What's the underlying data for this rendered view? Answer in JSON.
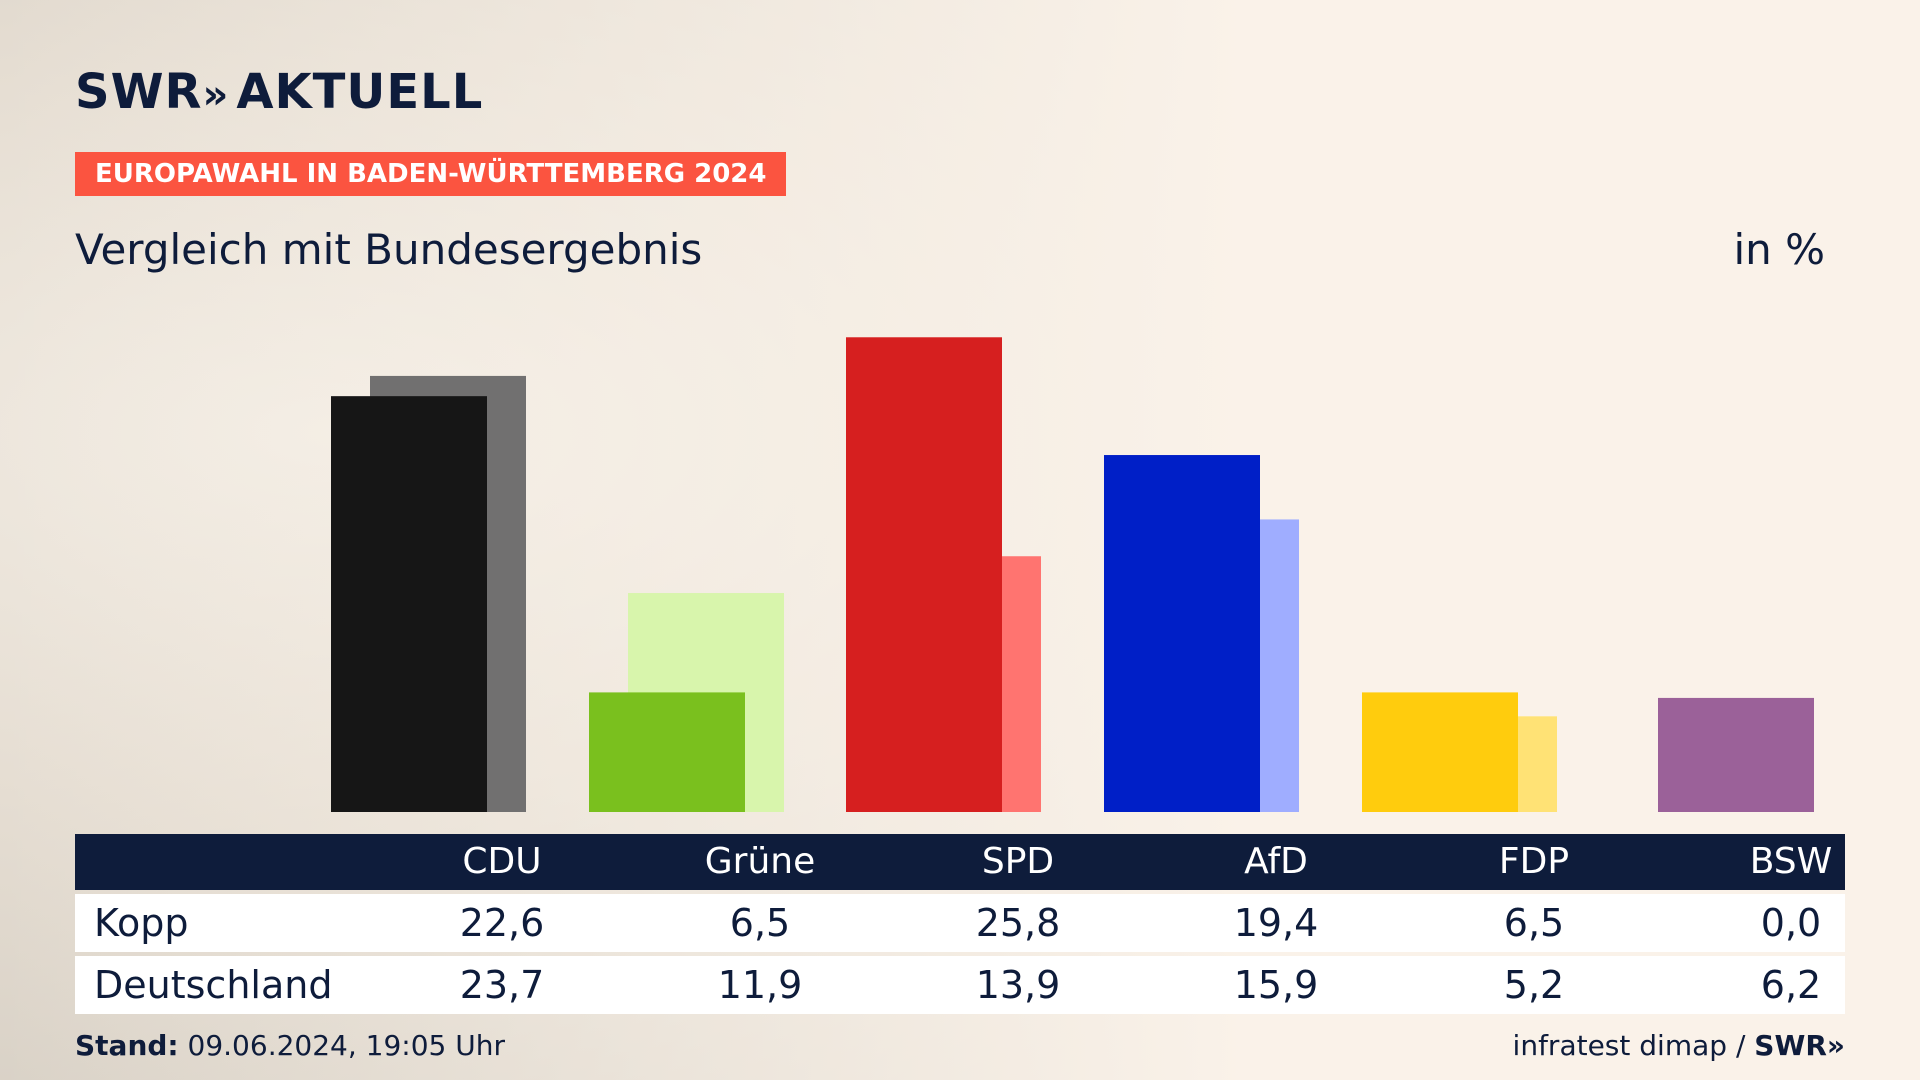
{
  "brand": {
    "name": "SWR",
    "chevrons": "»",
    "product": "AKTUELL"
  },
  "badge": "EUROPAWAHL IN BADEN-WÜRTTEMBERG 2024",
  "subtitle": "Vergleich mit Bundesergebnis",
  "unit": "in %",
  "colors": {
    "navy": "#0e1c3b",
    "badge": "#fb5440"
  },
  "chart_data": {
    "type": "bar",
    "categories": [
      "CDU",
      "Grüne",
      "SPD",
      "AfD",
      "FDP",
      "BSW"
    ],
    "series": [
      {
        "name": "Kopp",
        "values": [
          22.6,
          6.5,
          25.8,
          19.4,
          6.5,
          0.0
        ],
        "colors": [
          "#161616",
          "#7ac01e",
          "#d61f1f",
          "#001fc7",
          "#ffcc0d",
          "#9b6199"
        ]
      },
      {
        "name": "Deutschland",
        "values": [
          23.7,
          11.9,
          13.9,
          15.9,
          5.2,
          6.2
        ],
        "colors": [
          "#717070",
          "#d8f5ac",
          "#ff7470",
          "#9fadff",
          "#ffe275",
          "#9b6199"
        ]
      }
    ],
    "ylim": [
      0,
      26
    ]
  },
  "table": {
    "headers": [
      "CDU",
      "Grüne",
      "SPD",
      "AfD",
      "FDP",
      "BSW"
    ],
    "rows": [
      {
        "label": "Kopp",
        "values": [
          "22,6",
          "6,5",
          "25,8",
          "19,4",
          "6,5",
          "0,0"
        ]
      },
      {
        "label": "Deutschland",
        "values": [
          "23,7",
          "11,9",
          "13,9",
          "15,9",
          "5,2",
          "6,2"
        ]
      }
    ]
  },
  "footer": {
    "stand_label": "Stand:",
    "stand_value": "09.06.2024, 19:05 Uhr",
    "source": "infratest dimap",
    "separator": "/",
    "source_brand": "SWR",
    "source_chevrons": "»"
  }
}
